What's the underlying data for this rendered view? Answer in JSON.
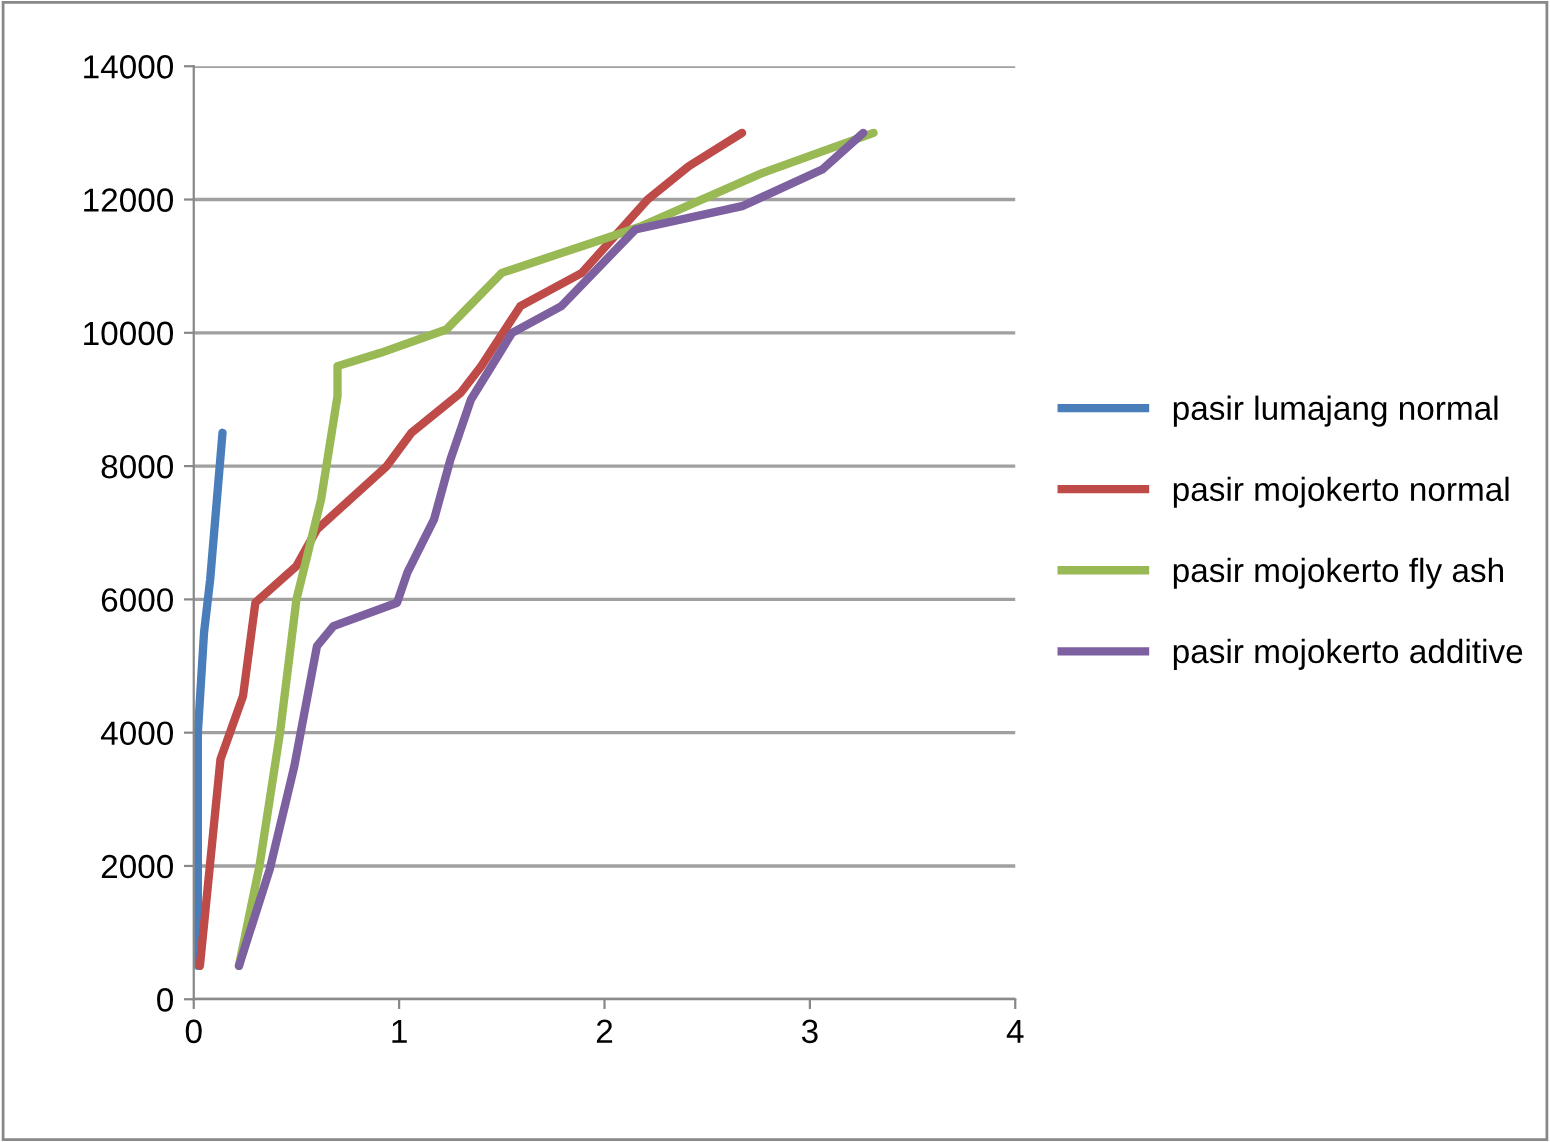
{
  "chart_data": {
    "type": "line",
    "xlim": [
      0,
      4
    ],
    "xticks": [
      0,
      1,
      2,
      3,
      4
    ],
    "ylim": [
      0,
      14000
    ],
    "yticks": [
      0,
      2000,
      4000,
      6000,
      8000,
      10000,
      12000,
      14000
    ],
    "grid": "y",
    "legend": "right",
    "marker": "none",
    "line_style": "solid",
    "series": [
      {
        "name": "pasir lumajang normal",
        "color": "#4a7ebb",
        "x": [
          0.02,
          0.02,
          0.05,
          0.08,
          0.14
        ],
        "values": [
          500,
          4000,
          5500,
          6300,
          8500
        ]
      },
      {
        "name": "pasir mojokerto normal",
        "color": "#be4b48",
        "x": [
          0.03,
          0.13,
          0.24,
          0.3,
          0.5,
          0.6,
          0.94,
          1.06,
          1.3,
          1.4,
          1.59,
          1.89,
          2.21,
          2.41,
          2.67
        ],
        "values": [
          500,
          3600,
          4550,
          5950,
          6500,
          7050,
          8000,
          8500,
          9100,
          9500,
          10400,
          10900,
          12000,
          12500,
          13000
        ]
      },
      {
        "name": "pasir mojokerto fly ash",
        "color": "#98b954",
        "x": [
          0.22,
          0.32,
          0.42,
          0.5,
          0.62,
          0.7,
          0.7,
          0.91,
          1.23,
          1.5,
          1.89,
          2.18,
          2.77,
          3.31
        ],
        "values": [
          500,
          2000,
          4000,
          6000,
          7500,
          9050,
          9500,
          9700,
          10050,
          10900,
          11300,
          11600,
          12400,
          13000
        ]
      },
      {
        "name": "pasir mojokerto additive",
        "color": "#7d60a0",
        "x": [
          0.22,
          0.37,
          0.49,
          0.6,
          0.68,
          0.99,
          1.04,
          1.17,
          1.25,
          1.35,
          1.55,
          1.79,
          2.15,
          2.67,
          3.06,
          3.26
        ],
        "values": [
          500,
          1950,
          3500,
          5300,
          5600,
          5950,
          6400,
          7200,
          8100,
          9000,
          10000,
          10400,
          11550,
          11900,
          12450,
          13000
        ]
      }
    ]
  }
}
